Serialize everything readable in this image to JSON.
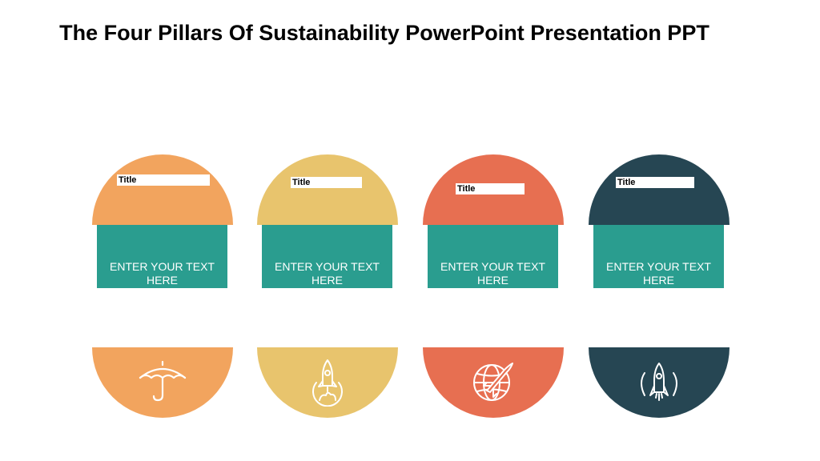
{
  "slide": {
    "title": "The Four Pillars Of Sustainability PowerPoint Presentation PPT"
  },
  "pillars": [
    {
      "title": "Title",
      "text": "ENTER YOUR TEXT HERE",
      "icon": "umbrella-icon",
      "color": "#f2a45e"
    },
    {
      "title": "Title",
      "text": "ENTER YOUR TEXT HERE",
      "icon": "rocket-launch-icon",
      "color": "#e8c46d"
    },
    {
      "title": "Title",
      "text": "ENTER YOUR TEXT HERE",
      "icon": "globe-rocket-icon",
      "color": "#e76f51"
    },
    {
      "title": "Title",
      "text": "ENTER YOUR TEXT HERE",
      "icon": "rocket-icon",
      "color": "#264653"
    }
  ],
  "accent_color": "#2a9d8f"
}
